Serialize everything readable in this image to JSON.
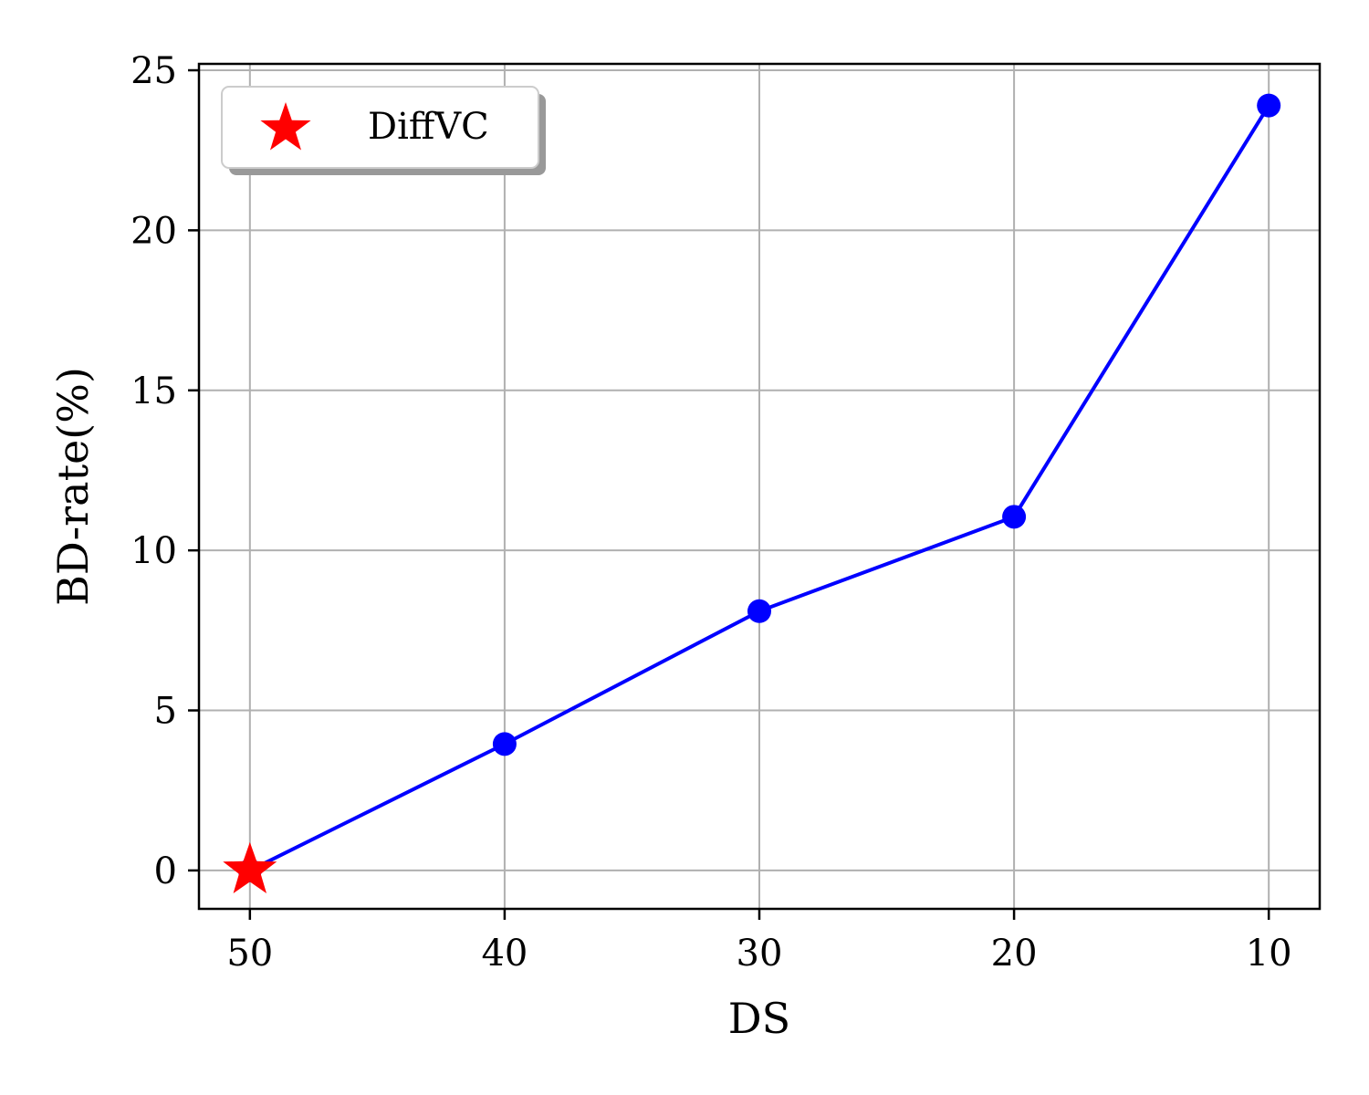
{
  "chart_data": {
    "type": "line",
    "title": "",
    "xlabel": "DS",
    "ylabel": "BD-rate(%)",
    "x_inverted": true,
    "xlim": [
      52,
      8
    ],
    "ylim": [
      -1.2,
      25.2
    ],
    "xticks": [
      50,
      40,
      30,
      20,
      10
    ],
    "yticks": [
      0,
      5,
      10,
      15,
      20,
      25
    ],
    "grid": true,
    "legend_position": "top-left",
    "series": [
      {
        "color": "#0000ff",
        "x": [
          50,
          40,
          30,
          20,
          10
        ],
        "y": [
          0,
          3.95,
          8.1,
          11.05,
          23.9
        ]
      }
    ],
    "highlight": {
      "name": "DiffVC",
      "marker": "star",
      "color": "#ff0000",
      "x": 50,
      "y": 0
    }
  }
}
